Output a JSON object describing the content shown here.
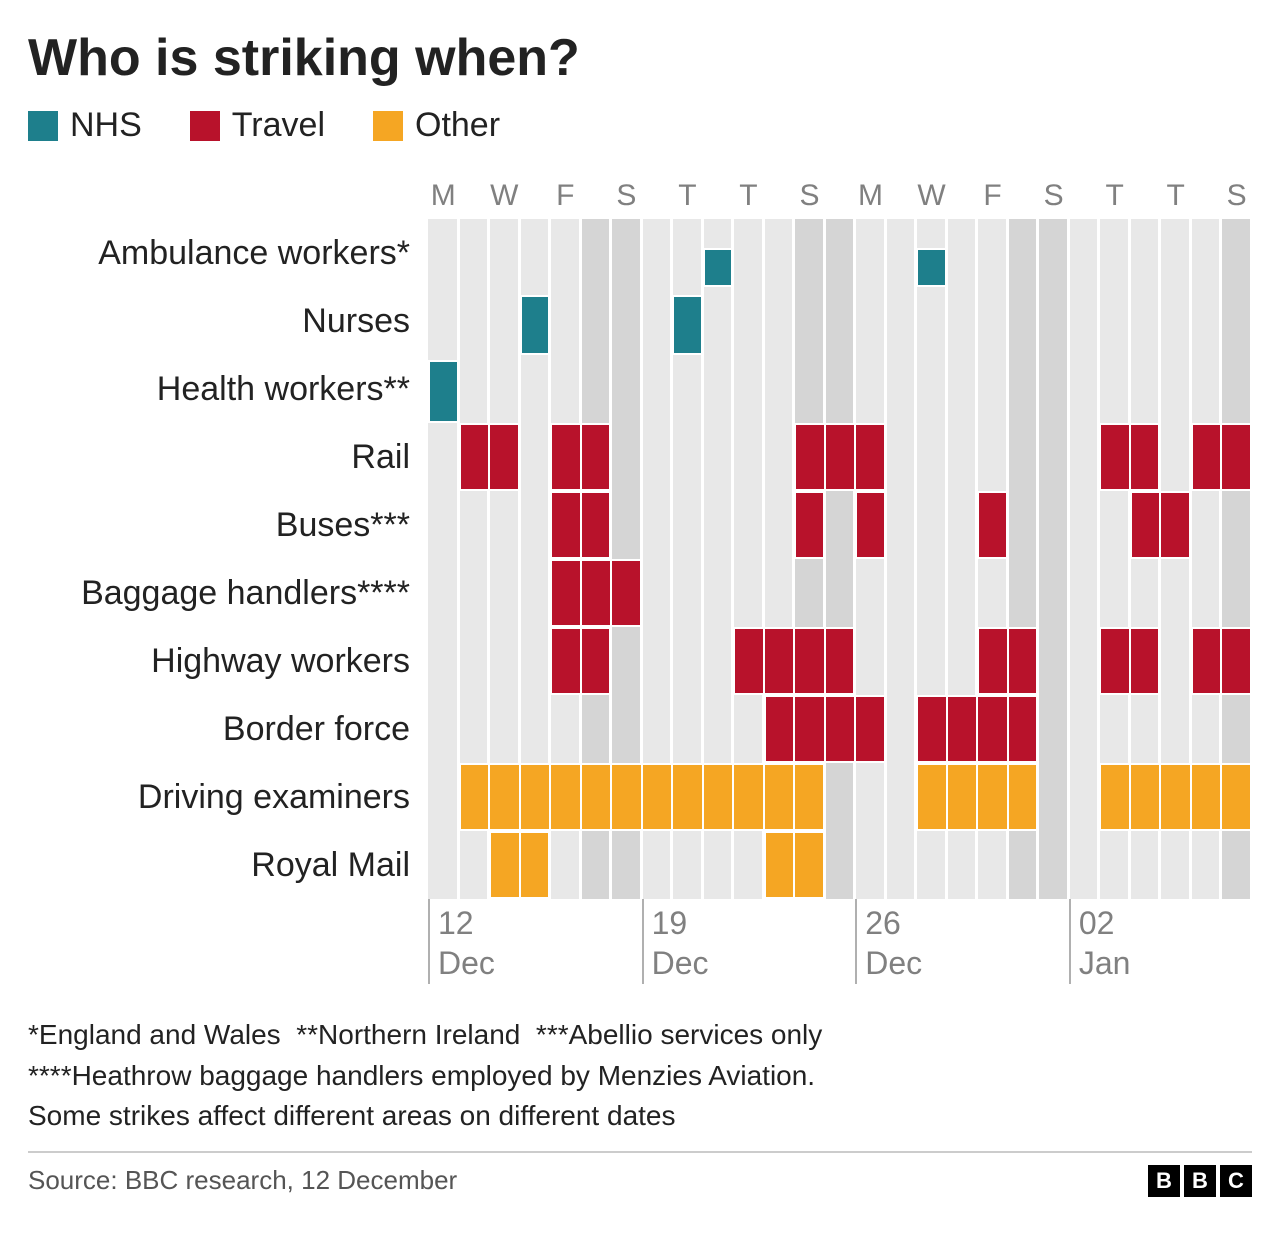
{
  "title": "Who is striking when?",
  "colors": {
    "nhs": "#1e7f8c",
    "travel": "#b8122b",
    "other": "#f5a623",
    "weekday_bg": "#e8e8e8",
    "weekend_bg": "#d5d5d5",
    "axis_text": "#808080"
  },
  "legend": [
    {
      "key": "nhs",
      "label": "NHS",
      "color": "#1e7f8c"
    },
    {
      "key": "travel",
      "label": "Travel",
      "color": "#b8122b"
    },
    {
      "key": "other",
      "label": "Other",
      "color": "#f5a623"
    }
  ],
  "top_axis_days": [
    "M",
    "",
    "W",
    "",
    "F",
    "",
    "S",
    "",
    "T",
    "",
    "T",
    "",
    "S",
    "",
    "M",
    "",
    "W",
    "",
    "F",
    "",
    "S",
    "",
    "T",
    "",
    "T",
    "",
    "S"
  ],
  "weekend_indices": [
    5,
    6,
    12,
    13,
    19,
    20,
    26
  ],
  "num_days": 27,
  "bottom_ticks": [
    {
      "day_index": 0,
      "line1": "12",
      "line2": "Dec"
    },
    {
      "day_index": 7,
      "line1": "19",
      "line2": "Dec"
    },
    {
      "day_index": 14,
      "line1": "26",
      "line2": "Dec"
    },
    {
      "day_index": 21,
      "line1": "02",
      "line2": "Jan"
    }
  ],
  "rows": [
    {
      "label": "Ambulance workers*",
      "category": "nhs",
      "blocks": [
        {
          "start": 9,
          "end": 9,
          "y0": 0.42,
          "y1": 1.0
        },
        {
          "start": 16,
          "end": 16,
          "y0": 0.42,
          "y1": 1.0
        }
      ]
    },
    {
      "label": "Nurses",
      "category": "nhs",
      "blocks": [
        {
          "start": 3,
          "end": 3,
          "y0": 0.12,
          "y1": 1.0
        },
        {
          "start": 8,
          "end": 8,
          "y0": 0.12,
          "y1": 1.0
        }
      ]
    },
    {
      "label": "Health workers**",
      "category": "nhs",
      "blocks": [
        {
          "start": 0,
          "end": 0,
          "y0": 0.08,
          "y1": 1.0
        }
      ]
    },
    {
      "label": "Rail",
      "category": "travel",
      "blocks": [
        {
          "start": 1,
          "end": 2,
          "y0": 0.0,
          "y1": 1.0
        },
        {
          "start": 4,
          "end": 5,
          "y0": 0.0,
          "y1": 1.0
        },
        {
          "start": 12,
          "end": 14,
          "y0": 0.0,
          "y1": 1.0
        },
        {
          "start": 22,
          "end": 23,
          "y0": 0.0,
          "y1": 1.0
        },
        {
          "start": 25,
          "end": 26,
          "y0": 0.0,
          "y1": 1.0
        }
      ]
    },
    {
      "label": "Buses***",
      "category": "travel",
      "blocks": [
        {
          "start": 4,
          "end": 5,
          "y0": 0.0,
          "y1": 1.0
        },
        {
          "start": 12,
          "end": 12,
          "y0": 0.0,
          "y1": 1.0
        },
        {
          "start": 14,
          "end": 14,
          "y0": 0.0,
          "y1": 1.0
        },
        {
          "start": 18,
          "end": 18,
          "y0": 0.0,
          "y1": 1.0
        },
        {
          "start": 23,
          "end": 24,
          "y0": 0.0,
          "y1": 1.0
        }
      ]
    },
    {
      "label": "Baggage handlers****",
      "category": "travel",
      "blocks": [
        {
          "start": 4,
          "end": 6,
          "y0": 0.0,
          "y1": 1.0
        }
      ]
    },
    {
      "label": "Highway workers",
      "category": "travel",
      "blocks": [
        {
          "start": 4,
          "end": 5,
          "y0": 0.0,
          "y1": 1.0
        },
        {
          "start": 10,
          "end": 13,
          "y0": 0.0,
          "y1": 1.0
        },
        {
          "start": 18,
          "end": 19,
          "y0": 0.0,
          "y1": 1.0
        },
        {
          "start": 22,
          "end": 23,
          "y0": 0.0,
          "y1": 1.0
        },
        {
          "start": 25,
          "end": 26,
          "y0": 0.0,
          "y1": 1.0
        }
      ]
    },
    {
      "label": "Border force",
      "category": "travel",
      "blocks": [
        {
          "start": 11,
          "end": 14,
          "y0": 0.0,
          "y1": 1.0
        },
        {
          "start": 16,
          "end": 19,
          "y0": 0.0,
          "y1": 1.0
        }
      ]
    },
    {
      "label": "Driving examiners",
      "category": "other",
      "blocks": [
        {
          "start": 1,
          "end": 12,
          "y0": 0.0,
          "y1": 1.0
        },
        {
          "start": 16,
          "end": 19,
          "y0": 0.0,
          "y1": 1.0
        },
        {
          "start": 22,
          "end": 26,
          "y0": 0.0,
          "y1": 1.0
        }
      ]
    },
    {
      "label": "Royal Mail",
      "category": "other",
      "blocks": [
        {
          "start": 2,
          "end": 3,
          "y0": 0.0,
          "y1": 1.0
        },
        {
          "start": 11,
          "end": 12,
          "y0": 0.0,
          "y1": 1.0
        }
      ]
    }
  ],
  "footnotes": [
    "*England and Wales  **Northern Ireland  ***Abellio services only",
    "****Heathrow baggage handlers employed by Menzies Aviation.",
    "Some strikes affect different areas on different dates"
  ],
  "source": "Source: BBC research, 12 December",
  "logo": [
    "B",
    "B",
    "C"
  ]
}
